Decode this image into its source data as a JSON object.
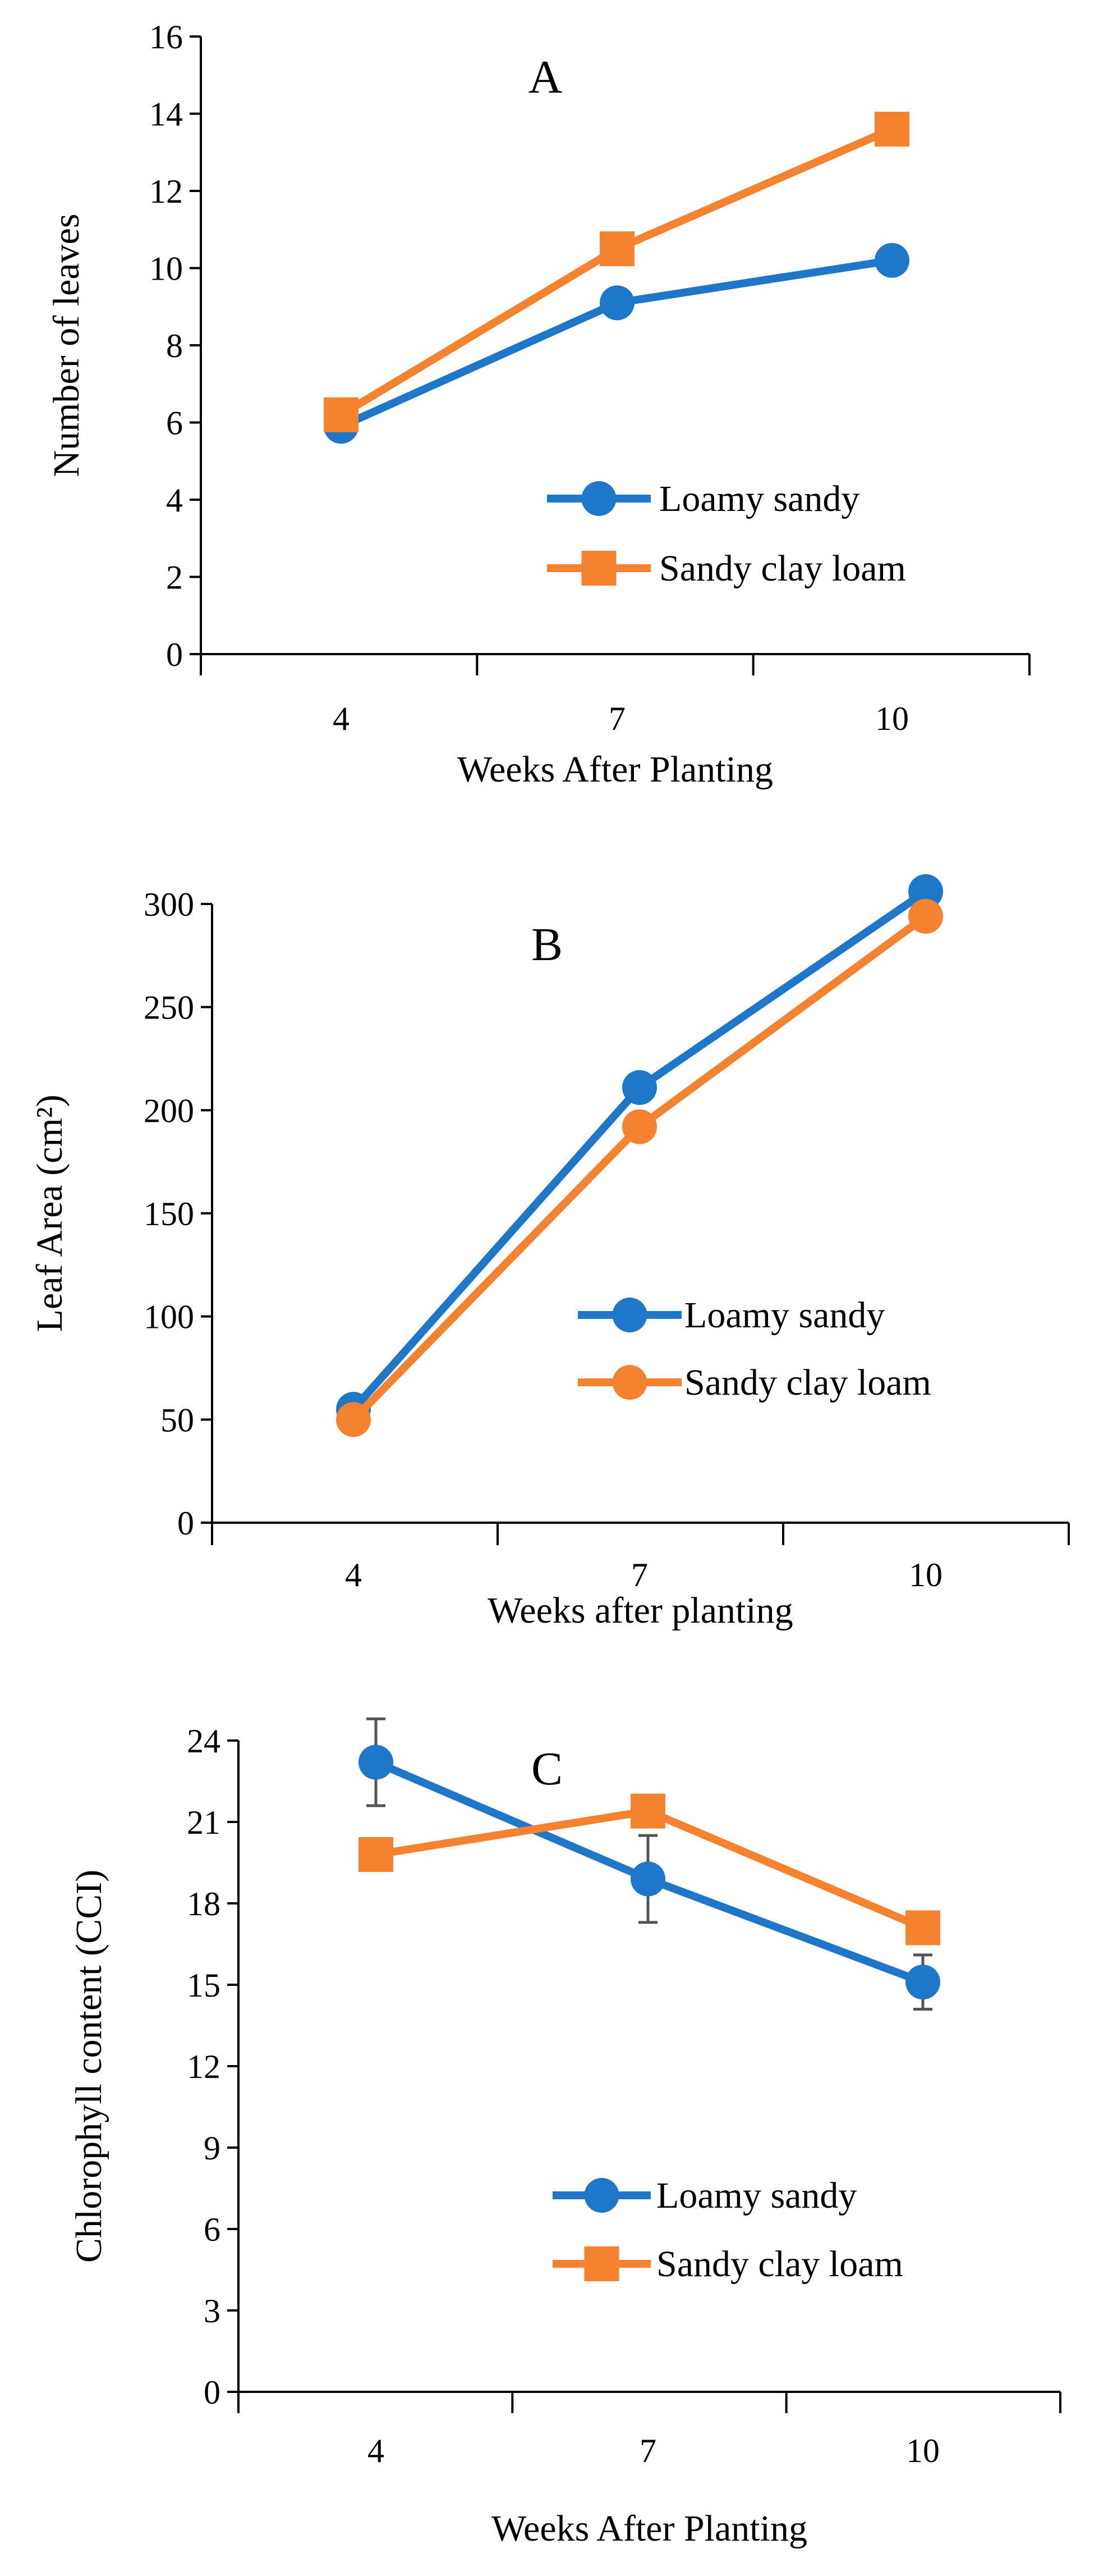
{
  "colors": {
    "loamy": "#1F77C9",
    "sandy": "#F5822E",
    "axis": "#000000",
    "errorbar": "#555555"
  },
  "chart_data": [
    {
      "type": "line",
      "panel_label": "A",
      "xlabel": "Weeks After Planting",
      "ylabel": "Number of leaves",
      "categories": [
        "4",
        "7",
        "10"
      ],
      "ylim": [
        0,
        16
      ],
      "yticks": [
        "0",
        "2",
        "4",
        "6",
        "8",
        "10",
        "12",
        "14",
        "16"
      ],
      "legend_position": "center-right",
      "series": [
        {
          "name": "Loamy sandy",
          "marker": "circle",
          "color": "#1F77C9",
          "values": [
            5.9,
            9.1,
            10.2
          ],
          "errors": [
            0.1,
            0.35,
            0.1
          ]
        },
        {
          "name": "Sandy clay loam",
          "marker": "square",
          "color": "#F5822E",
          "values": [
            6.2,
            10.5,
            13.6
          ],
          "errors": [
            0,
            0,
            0
          ]
        }
      ]
    },
    {
      "type": "line",
      "panel_label": "B",
      "xlabel": "Weeks after planting",
      "ylabel": "Leaf Area (cm²)",
      "categories": [
        "4",
        "7",
        "10"
      ],
      "ylim": [
        0,
        300
      ],
      "yticks": [
        "0",
        "50",
        "100",
        "150",
        "200",
        "250",
        "300"
      ],
      "legend_position": "center-right",
      "series": [
        {
          "name": "Loamy sandy",
          "marker": "circle",
          "color": "#1F77C9",
          "values": [
            55,
            211,
            306
          ],
          "errors": [
            0,
            0,
            0
          ]
        },
        {
          "name": "Sandy clay loam",
          "marker": "circle",
          "color": "#F5822E",
          "values": [
            50,
            192,
            294
          ],
          "errors": [
            0,
            0,
            0
          ]
        }
      ]
    },
    {
      "type": "line",
      "panel_label": "C",
      "xlabel": "Weeks After Planting",
      "ylabel": "Chlorophyll content (CCI)",
      "categories": [
        "4",
        "7",
        "10"
      ],
      "ylim": [
        0,
        24
      ],
      "yticks": [
        "0",
        "3",
        "6",
        "9",
        "12",
        "15",
        "18",
        "21",
        "24"
      ],
      "legend_position": "lower-right",
      "series": [
        {
          "name": "Loamy sandy",
          "marker": "circle",
          "color": "#1F77C9",
          "values": [
            23.2,
            18.9,
            15.1
          ],
          "errors": [
            1.6,
            1.6,
            1.0
          ]
        },
        {
          "name": "Sandy clay loam",
          "marker": "square",
          "color": "#F5822E",
          "values": [
            19.8,
            21.4,
            17.1
          ],
          "errors": [
            0,
            0,
            0
          ]
        }
      ]
    }
  ]
}
